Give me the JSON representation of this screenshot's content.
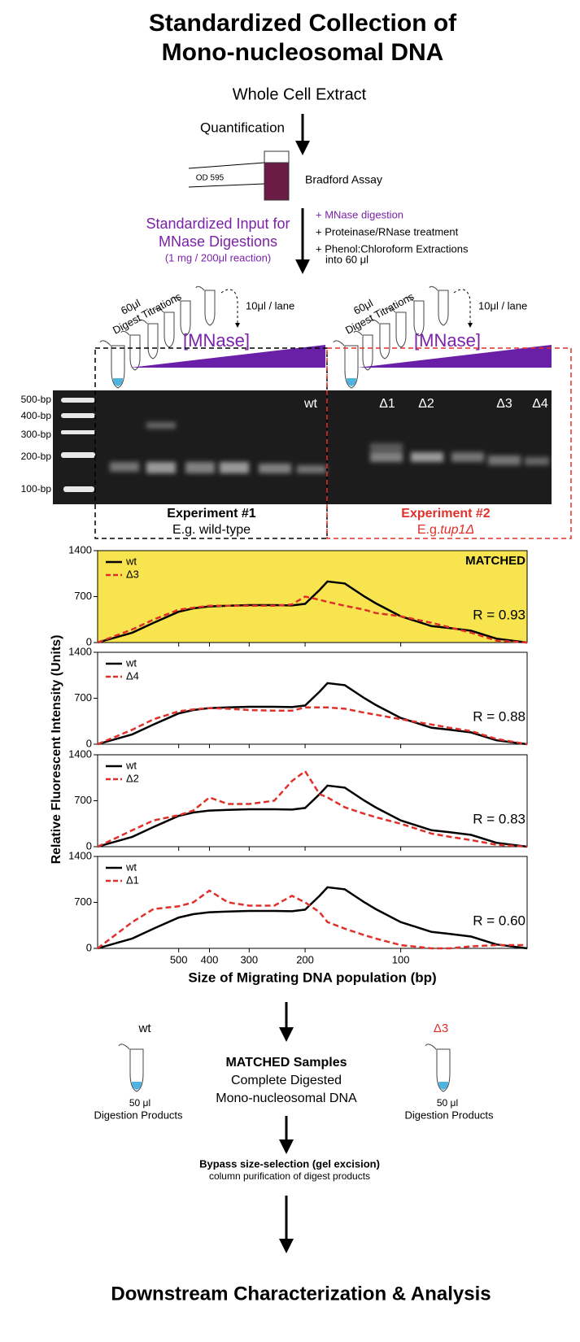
{
  "header": {
    "title_line1": "Standardized Collection of",
    "title_line2": "Mono-nucleosomal DNA"
  },
  "workflow": {
    "start": "Whole Cell Extract",
    "quantification": "Quantification",
    "od": "OD 595",
    "assay": "Bradford Assay",
    "input_line1": "Standardized Input for",
    "input_line2": "MNase Digestions",
    "input_line3": "(1 mg / 200μl reaction)",
    "steps": [
      "+ MNase digestion",
      "+ Proteinase/RNase treatment",
      "+ Phenol:Chloroform Extractions",
      "into 60 μl"
    ],
    "tube_volume": "60μl",
    "titrations": "Digest Titrations",
    "lane_volume": "10μl / lane",
    "mnase": "[MNase]"
  },
  "gel": {
    "ladder_labels": [
      "500-bp",
      "400-bp",
      "300-bp",
      "200-bp",
      "100-bp"
    ],
    "lane_labels": [
      "wt",
      "Δ1",
      "Δ2",
      "Δ3",
      "Δ4"
    ]
  },
  "experiments": [
    {
      "title": "Experiment #1",
      "subtitle": "E.g. wild-type"
    },
    {
      "title": "Experiment #2",
      "subtitle_prefix": "E.g.",
      "subtitle_gene": "tup1Δ"
    }
  ],
  "chart_data": [
    {
      "type": "line",
      "y_label": "Relative Fluorescent Intensity (Units)",
      "label": "MATCHED",
      "background": "#f7e44f",
      "annotation": "R = 0.93",
      "x": [
        900,
        700,
        600,
        500,
        450,
        400,
        350,
        300,
        250,
        220,
        200,
        180,
        170,
        150,
        130,
        120,
        100,
        80,
        70,
        60,
        50,
        40
      ],
      "xscale": "log",
      "xlim": [
        900,
        40
      ],
      "xticks": [
        500,
        400,
        300,
        200,
        100
      ],
      "ylim": [
        0,
        1400
      ],
      "yticks": [
        0,
        700,
        1400
      ],
      "series": [
        {
          "name": "wt",
          "color": "#000000",
          "dash": false,
          "values": [
            0,
            150,
            300,
            470,
            520,
            550,
            560,
            570,
            570,
            565,
            590,
            800,
            930,
            900,
            700,
            600,
            400,
            250,
            220,
            180,
            60,
            0
          ]
        },
        {
          "name": "Δ3",
          "color": "#e0302a",
          "dash": true,
          "values": [
            0,
            200,
            350,
            500,
            530,
            560,
            560,
            560,
            560,
            580,
            700,
            650,
            620,
            560,
            500,
            450,
            400,
            300,
            230,
            150,
            30,
            0
          ]
        }
      ]
    },
    {
      "type": "line",
      "annotation": "R = 0.88",
      "x": [
        900,
        700,
        600,
        500,
        450,
        400,
        350,
        300,
        250,
        220,
        200,
        180,
        170,
        150,
        130,
        120,
        100,
        80,
        70,
        60,
        50,
        40
      ],
      "xscale": "log",
      "xlim": [
        900,
        40
      ],
      "xticks": [
        500,
        400,
        300,
        200,
        100
      ],
      "ylim": [
        0,
        1400
      ],
      "yticks": [
        0,
        700,
        1400
      ],
      "series": [
        {
          "name": "wt",
          "color": "#000000",
          "dash": false,
          "values": [
            0,
            150,
            300,
            470,
            520,
            550,
            560,
            570,
            570,
            565,
            590,
            800,
            930,
            900,
            700,
            600,
            400,
            250,
            220,
            180,
            60,
            0
          ]
        },
        {
          "name": "Δ4",
          "color": "#e0302a",
          "dash": true,
          "values": [
            0,
            220,
            380,
            500,
            530,
            550,
            540,
            520,
            510,
            510,
            560,
            560,
            560,
            540,
            480,
            450,
            380,
            300,
            250,
            200,
            80,
            0
          ]
        }
      ]
    },
    {
      "type": "line",
      "annotation": "R = 0.83",
      "x": [
        900,
        700,
        600,
        500,
        450,
        400,
        350,
        300,
        250,
        220,
        200,
        180,
        170,
        150,
        130,
        120,
        100,
        80,
        70,
        60,
        50,
        40
      ],
      "xscale": "log",
      "xlim": [
        900,
        40
      ],
      "xticks": [
        500,
        400,
        300,
        200,
        100
      ],
      "ylim": [
        0,
        1400
      ],
      "yticks": [
        0,
        700,
        1400
      ],
      "series": [
        {
          "name": "wt",
          "color": "#000000",
          "dash": false,
          "values": [
            0,
            150,
            300,
            470,
            520,
            550,
            560,
            570,
            570,
            565,
            590,
            800,
            930,
            900,
            700,
            600,
            400,
            250,
            220,
            180,
            60,
            0
          ]
        },
        {
          "name": "Δ2",
          "color": "#e0302a",
          "dash": true,
          "values": [
            0,
            250,
            400,
            480,
            550,
            750,
            650,
            650,
            700,
            1000,
            1150,
            800,
            750,
            600,
            500,
            450,
            350,
            200,
            150,
            100,
            30,
            0
          ]
        }
      ]
    },
    {
      "type": "line",
      "annotation": "R = 0.60",
      "x_label": "Size of Migrating DNA population (bp)",
      "x": [
        900,
        700,
        600,
        500,
        450,
        400,
        350,
        300,
        250,
        220,
        200,
        180,
        170,
        150,
        130,
        120,
        100,
        80,
        70,
        60,
        50,
        40
      ],
      "xscale": "log",
      "xlim": [
        900,
        40
      ],
      "xticks": [
        500,
        400,
        300,
        200,
        100
      ],
      "ylim": [
        0,
        1400
      ],
      "yticks": [
        0,
        700,
        1400
      ],
      "series": [
        {
          "name": "wt",
          "color": "#000000",
          "dash": false,
          "values": [
            0,
            150,
            300,
            470,
            520,
            550,
            560,
            570,
            570,
            565,
            590,
            800,
            930,
            900,
            700,
            600,
            400,
            250,
            220,
            180,
            60,
            0
          ]
        },
        {
          "name": "Δ1",
          "color": "#e0302a",
          "dash": true,
          "values": [
            0,
            400,
            600,
            640,
            700,
            880,
            700,
            650,
            650,
            800,
            700,
            550,
            400,
            300,
            200,
            150,
            50,
            0,
            0,
            30,
            50,
            50
          ]
        }
      ]
    }
  ],
  "bottom": {
    "left_label": "wt",
    "right_label": "Δ3",
    "volume": "50 μl",
    "products": "Digestion Products",
    "matched_title": "MATCHED Samples",
    "matched_line2": "Complete Digested",
    "matched_line3": "Mono-nucleosomal DNA",
    "bypass": "Bypass size-selection (gel excision)",
    "column": "column purification of digest products",
    "final": "Downstream Characterization & Analysis"
  }
}
